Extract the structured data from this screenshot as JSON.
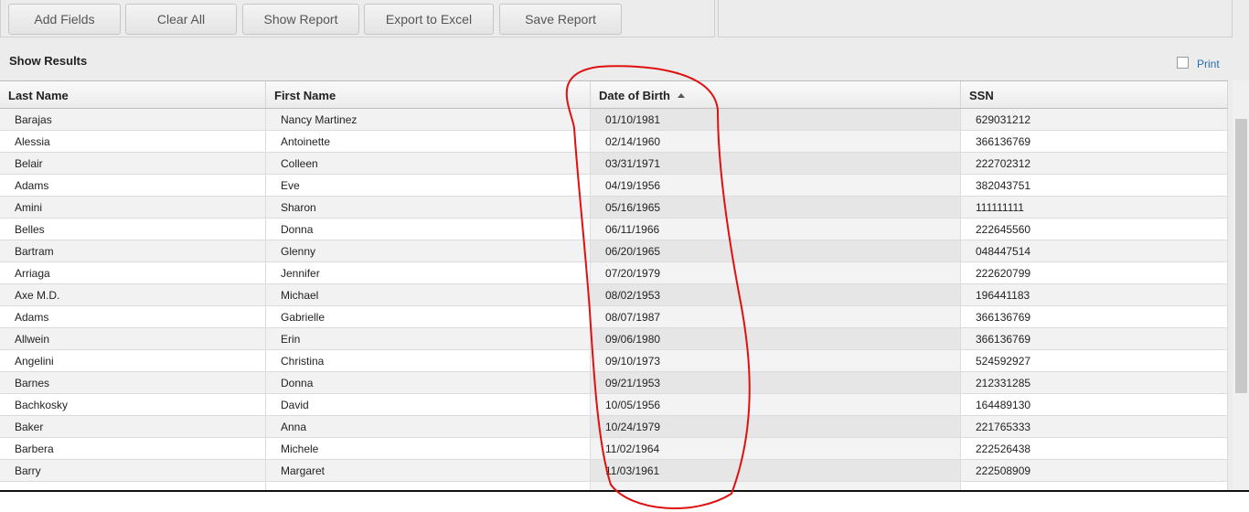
{
  "toolbar": {
    "buttons": [
      "Add Fields",
      "Clear All",
      "Show Report",
      "Export to Excel",
      "Save Report"
    ]
  },
  "header": {
    "title": "Show Results",
    "print": "Print"
  },
  "table": {
    "columns": [
      "Last Name",
      "First Name",
      "Date of Birth",
      "SSN"
    ],
    "rows": [
      [
        "Barajas",
        "Nancy Martinez",
        "01/10/1981",
        "629031212"
      ],
      [
        "Alessia",
        "Antoinette",
        "02/14/1960",
        "366136769"
      ],
      [
        "Belair",
        "Colleen",
        "03/31/1971",
        "222702312"
      ],
      [
        "Adams",
        "Eve",
        "04/19/1956",
        "382043751"
      ],
      [
        "Amini",
        "Sharon",
        "05/16/1965",
        "111111111"
      ],
      [
        "Belles",
        "Donna",
        "06/11/1966",
        "222645560"
      ],
      [
        "Bartram",
        "Glenny",
        "06/20/1965",
        "048447514"
      ],
      [
        "Arriaga",
        "Jennifer",
        "07/20/1979",
        "222620799"
      ],
      [
        "Axe M.D.",
        "Michael",
        "08/02/1953",
        "196441183"
      ],
      [
        "Adams",
        "Gabrielle",
        "08/07/1987",
        "366136769"
      ],
      [
        "Allwein",
        "Erin",
        "09/06/1980",
        "366136769"
      ],
      [
        "Angelini",
        "Christina",
        "09/10/1973",
        "524592927"
      ],
      [
        "Barnes",
        "Donna",
        "09/21/1953",
        "212331285"
      ],
      [
        "Bachkosky",
        "David",
        "10/05/1956",
        "164489130"
      ],
      [
        "Baker",
        "Anna",
        "10/24/1979",
        "221765333"
      ],
      [
        "Barbera",
        "Michele",
        "11/02/1964",
        "222526438"
      ],
      [
        "Barry",
        "Margaret",
        "11/03/1961",
        "222508909"
      ]
    ]
  }
}
